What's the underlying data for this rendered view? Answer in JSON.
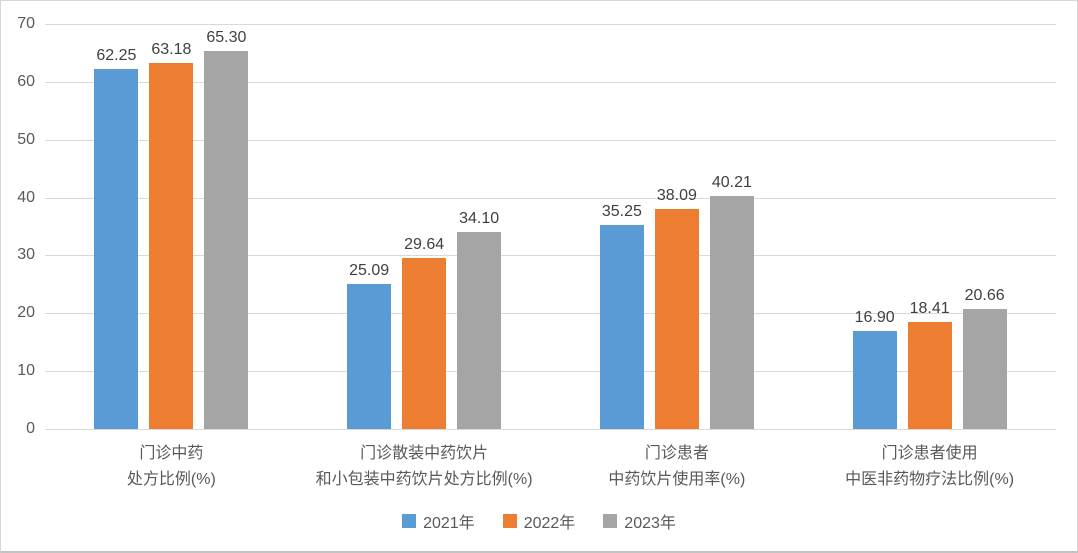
{
  "chart_data": {
    "type": "bar",
    "title": "",
    "categories": [
      [
        "门诊中药",
        "处方比例(%)"
      ],
      [
        "门诊散装中药饮片",
        "和小包装中药饮片处方比例(%)"
      ],
      [
        "门诊患者",
        "中药饮片使用率(%)"
      ],
      [
        "门诊患者使用",
        "中医非药物疗法比例(%)"
      ]
    ],
    "series": [
      {
        "name": "2021年",
        "color": "#5B9BD5",
        "values": [
          62.25,
          25.09,
          35.25,
          16.9
        ]
      },
      {
        "name": "2022年",
        "color": "#ED7D31",
        "values": [
          63.18,
          29.64,
          38.09,
          18.41
        ]
      },
      {
        "name": "2023年",
        "color": "#A5A5A5",
        "values": [
          65.3,
          34.1,
          40.21,
          20.66
        ]
      }
    ],
    "yticks": [
      0,
      10,
      20,
      30,
      40,
      50,
      60,
      70
    ],
    "ylim": [
      0,
      70
    ],
    "xlabel": "",
    "ylabel": "",
    "grid": true,
    "legend_position": "bottom",
    "value_labels_decimals": 2
  },
  "colors": {
    "background": "#FFFFFF",
    "border": "#D6D6D6",
    "gridline": "#D9D9D9",
    "axis_text": "#595959",
    "value_label_text": "#404040"
  }
}
